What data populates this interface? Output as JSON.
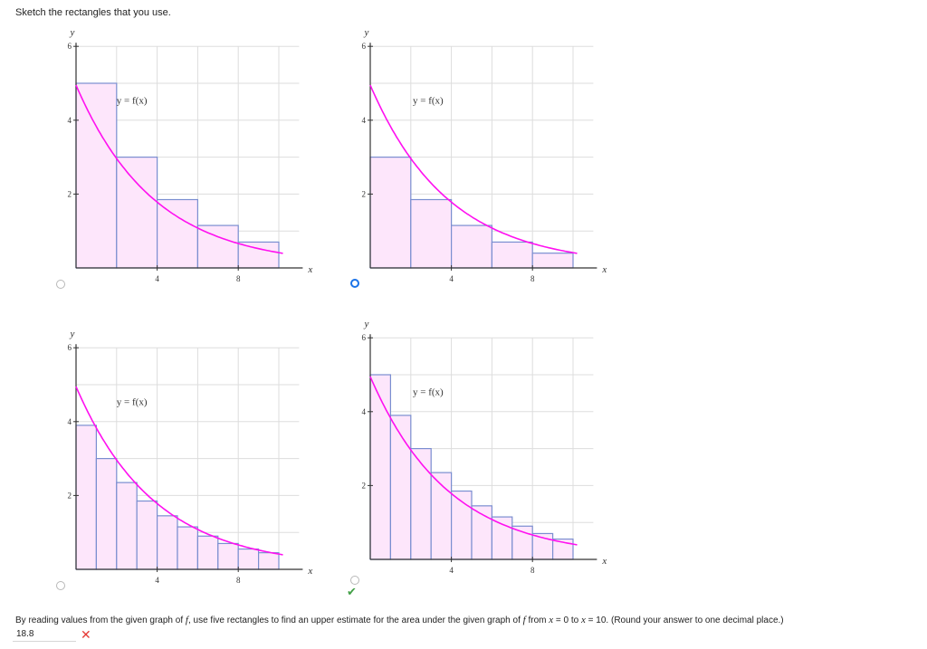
{
  "instruction": "Sketch the rectangles that you use.",
  "graph_labels": {
    "y_axis": "y",
    "x_axis": "x",
    "function_label": "y = f(x)",
    "y_ticks": [
      "2",
      "4",
      "6"
    ],
    "x_ticks": [
      "4",
      "8"
    ]
  },
  "colors": {
    "curve": "#ff10f0",
    "rect_fill": "#fde6fb",
    "rect_stroke": "#7a8ed0",
    "grid": "#dddddd",
    "radio_selected": "#1a73e8",
    "wrong": "#e53935",
    "correct": "#43a047"
  },
  "chart_data": [
    {
      "type": "bar",
      "x_range": [
        0,
        10
      ],
      "y_range": [
        0,
        6
      ],
      "rect_width": 2,
      "rect_x": [
        0,
        2,
        4,
        6,
        8
      ],
      "values": [
        5.0,
        3.0,
        1.85,
        1.15,
        0.7
      ],
      "curve": "f(x)",
      "selected": false
    },
    {
      "type": "bar",
      "x_range": [
        0,
        10
      ],
      "y_range": [
        0,
        6
      ],
      "rect_width": 2,
      "rect_x": [
        0,
        2,
        4,
        6,
        8
      ],
      "values": [
        3.0,
        1.85,
        1.15,
        0.7,
        0.4
      ],
      "curve": "f(x)",
      "selected": true,
      "status": "correct"
    },
    {
      "type": "bar",
      "x_range": [
        0,
        10
      ],
      "y_range": [
        0,
        6
      ],
      "rect_width": 1,
      "rect_x": [
        0,
        1,
        2,
        3,
        4,
        5,
        6,
        7,
        8,
        9
      ],
      "values": [
        3.9,
        3.0,
        2.35,
        1.85,
        1.45,
        1.15,
        0.9,
        0.7,
        0.55,
        0.45
      ],
      "curve": "f(x)",
      "selected": false
    },
    {
      "type": "bar",
      "x_range": [
        0,
        10
      ],
      "y_range": [
        0,
        6
      ],
      "rect_width": 1,
      "rect_x": [
        0,
        1,
        2,
        3,
        4,
        5,
        6,
        7,
        8,
        9
      ],
      "values": [
        5.0,
        3.9,
        3.0,
        2.35,
        1.85,
        1.45,
        1.15,
        0.9,
        0.7,
        0.55
      ],
      "curve": "f(x)",
      "selected": false
    }
  ],
  "question": {
    "prefix": "By reading values from the given graph of ",
    "f": "f",
    "middle": ", use five rectangles to find an upper estimate for the area under the given graph of ",
    "f2": "f",
    "from_word": " from ",
    "x1": "x",
    "eq1": " = 0 to ",
    "x2": "x",
    "eq2": " = 10. (Round your answer to one decimal place.)"
  },
  "answer": {
    "value": "18.8",
    "wrong_symbol": "✕",
    "correct_symbol": "✔"
  }
}
